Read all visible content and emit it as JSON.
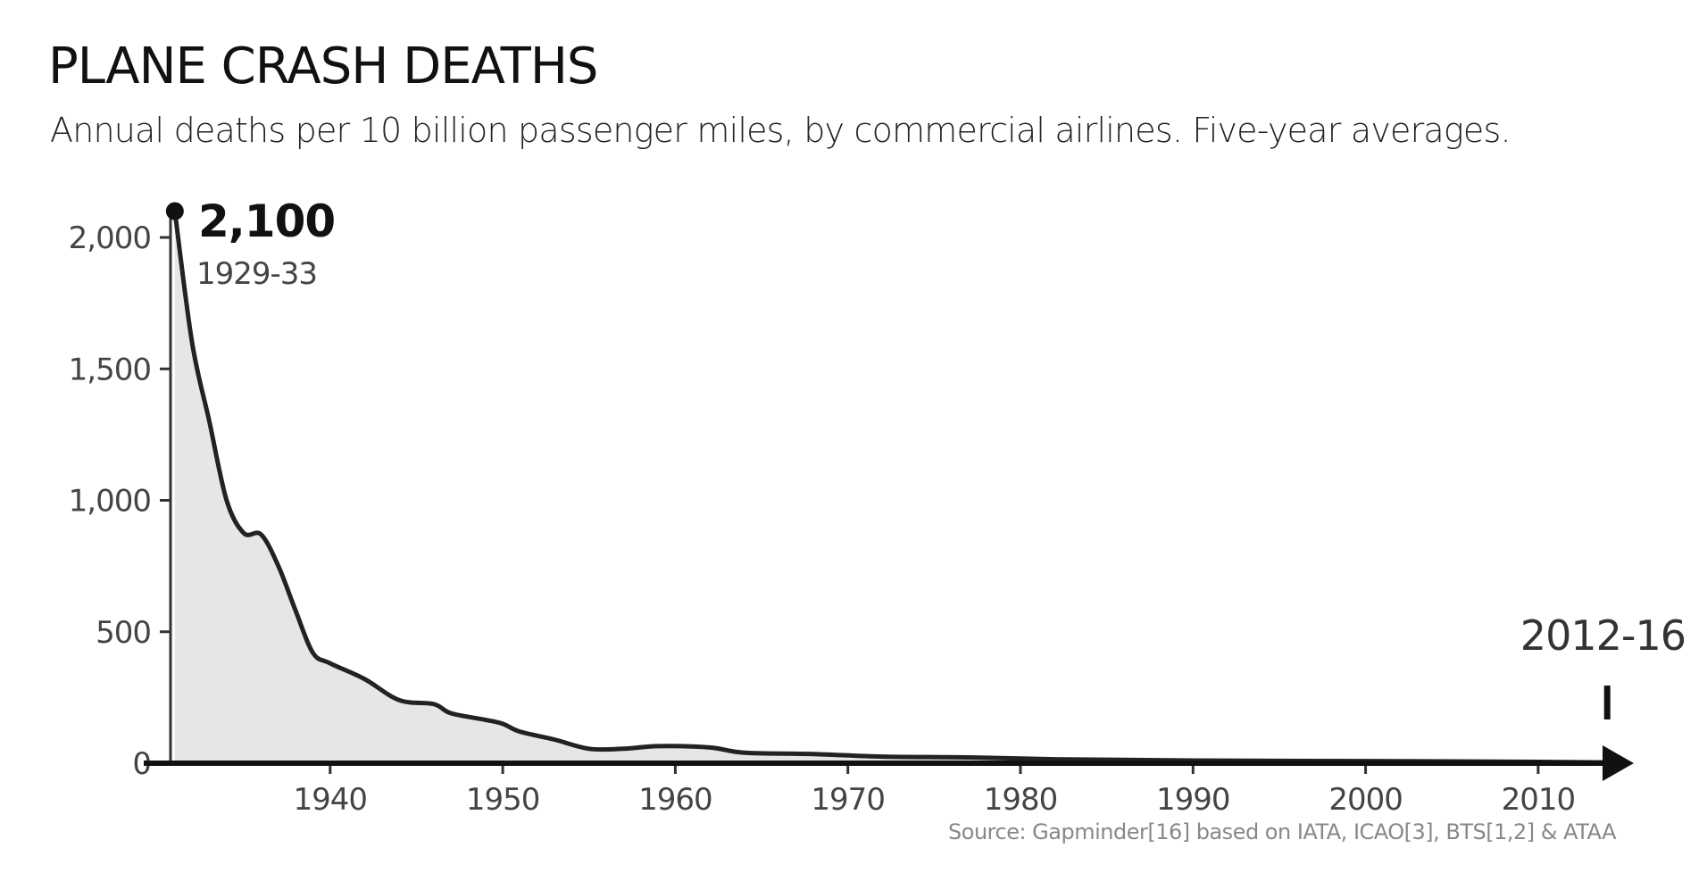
{
  "chart_data": {
    "type": "area",
    "title": "PLANE CRASH DEATHS",
    "subtitle": "Annual deaths per 10 billion passenger miles, by commercial airlines. Five-year averages.",
    "xlabel": "",
    "ylabel": "",
    "xlim": [
      1930.7,
      2016.5
    ],
    "ylim": [
      0,
      2100
    ],
    "grid": false,
    "yticks": [
      {
        "v": 0,
        "label": "0"
      },
      {
        "v": 500,
        "label": "500"
      },
      {
        "v": 1000,
        "label": "1,000"
      },
      {
        "v": 1500,
        "label": "1,500"
      },
      {
        "v": 2000,
        "label": "2,000"
      }
    ],
    "xticks": [
      {
        "v": 1940,
        "label": "1940"
      },
      {
        "v": 1950,
        "label": "1950"
      },
      {
        "v": 1960,
        "label": "1960"
      },
      {
        "v": 1970,
        "label": "1970"
      },
      {
        "v": 1980,
        "label": "1980"
      },
      {
        "v": 1990,
        "label": "1990"
      },
      {
        "v": 2000,
        "label": "2000"
      },
      {
        "v": 2010,
        "label": "2010"
      }
    ],
    "x": [
      1931,
      1932,
      1933,
      1934,
      1935,
      1936,
      1937,
      1938,
      1939,
      1940,
      1942,
      1944,
      1946,
      1947,
      1949,
      1950,
      1951,
      1953,
      1955,
      1957,
      1959,
      1962,
      1964,
      1968,
      1972,
      1977,
      1982,
      1990,
      2000,
      2010,
      2014
    ],
    "values": [
      2100,
      1600,
      1300,
      1000,
      875,
      870,
      750,
      580,
      420,
      380,
      320,
      240,
      225,
      190,
      165,
      150,
      120,
      90,
      55,
      55,
      65,
      60,
      40,
      35,
      25,
      22,
      15,
      10,
      8,
      5,
      3
    ],
    "annotations": {
      "start": {
        "x": 1931,
        "value_label": "2,100",
        "period": "1929-33"
      },
      "end": {
        "x": 2014,
        "period": "2012-16"
      }
    },
    "source": "Source: Gapminder[16] based on IATA, ICAO[3], BTS[1,2] & ATAA"
  },
  "colors": {
    "line": "#222222",
    "fill": "#e6e6e6",
    "axis": "#333333",
    "arrow": "#111111"
  }
}
